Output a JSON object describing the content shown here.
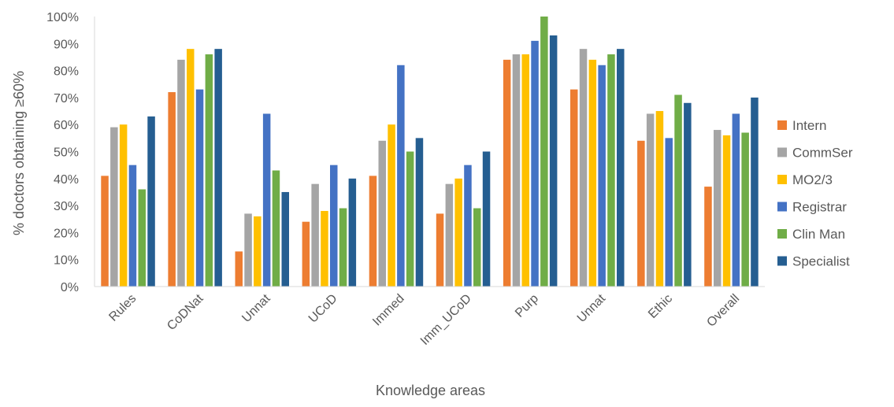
{
  "chart_data": {
    "type": "bar",
    "title": "",
    "xlabel": "Knowledge areas",
    "ylabel": "% doctors obtaining ≥60%",
    "ylim": [
      0,
      100
    ],
    "yticks": [
      "0%",
      "10%",
      "20%",
      "30%",
      "40%",
      "50%",
      "60%",
      "70%",
      "80%",
      "90%",
      "100%"
    ],
    "grid": false,
    "legend_position": "right",
    "categories": [
      "Rules",
      "CoDNat",
      "Unnat",
      "UCoD",
      "Immed",
      "Imm_UCoD",
      "Purp",
      "Unnat",
      "Ethic",
      "Overall"
    ],
    "series": [
      {
        "name": "Intern",
        "color": "#ED7D31",
        "values": [
          41,
          72,
          13,
          24,
          41,
          27,
          84,
          73,
          54,
          37
        ]
      },
      {
        "name": "CommSer",
        "color": "#A5A5A5",
        "values": [
          59,
          84,
          27,
          38,
          54,
          38,
          86,
          88,
          64,
          58
        ]
      },
      {
        "name": "MO2/3",
        "color": "#FFC000",
        "values": [
          60,
          88,
          26,
          28,
          60,
          40,
          86,
          84,
          65,
          56
        ]
      },
      {
        "name": "Registrar",
        "color": "#4472C4",
        "values": [
          45,
          73,
          64,
          45,
          82,
          45,
          91,
          82,
          55,
          64
        ]
      },
      {
        "name": "Clin Man",
        "color": "#70AD47",
        "values": [
          36,
          86,
          43,
          29,
          50,
          29,
          100,
          86,
          71,
          57
        ]
      },
      {
        "name": "Specialist",
        "color": "#255E91",
        "values": [
          63,
          88,
          35,
          40,
          55,
          50,
          93,
          88,
          68,
          70
        ]
      }
    ]
  }
}
